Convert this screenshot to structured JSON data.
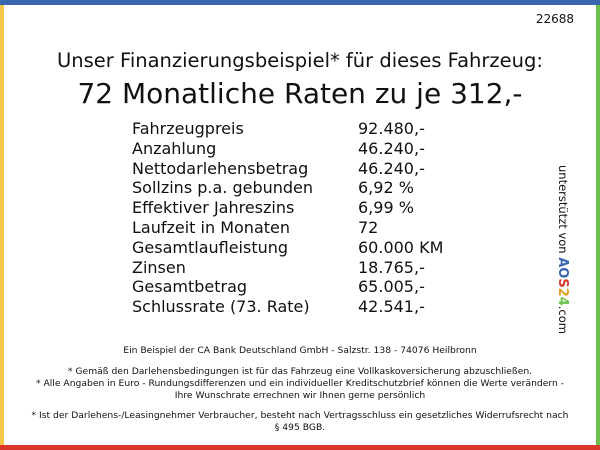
{
  "colors": {
    "top": "#3a66b0",
    "left": "#f7c548",
    "right": "#6cc04a",
    "bottom": "#d8372a"
  },
  "code": "22688",
  "headline": "Unser Finanzierungsbeispiel* für dieses Fahrzeug:",
  "rate_line": "72 Monatliche Raten zu je 312,-",
  "rows": [
    {
      "label": "Fahrzeugpreis",
      "value": "92.480,-"
    },
    {
      "label": "Anzahlung",
      "value": "46.240,-"
    },
    {
      "label": "Nettodarlehensbetrag",
      "value": "46.240,-"
    },
    {
      "label": "Sollzins p.a. gebunden",
      "value": "6,92 %"
    },
    {
      "label": "Effektiver Jahreszins",
      "value": "6,99 %"
    },
    {
      "label": "Laufzeit in Monaten",
      "value": "72"
    },
    {
      "label": "Gesamtlaufleistung",
      "value": "60.000 KM"
    },
    {
      "label": "Zinsen",
      "value": "18.765,-"
    },
    {
      "label": "Gesamtbetrag",
      "value": "65.005,-"
    },
    {
      "label": "Schlussrate (73. Rate)",
      "value": "42.541,-"
    }
  ],
  "side": {
    "text": "unterstützt von",
    "logo": "AOS24",
    "suffix": ".com"
  },
  "bank": "Ein Beispiel der CA Bank Deutschland GmbH - Salzstr. 138 - 74076 Heilbronn",
  "notes": [
    "* Gemäß den Darlehensbedingungen ist für das Fahrzeug eine Vollkaskoversicherung abzuschließen.",
    "* Alle Angaben in Euro - Rundungsdifferenzen und ein individueller Kreditschutzbrief können die Werte verändern - Ihre Wunschrate errechnen wir Ihnen gerne persönlich",
    "* Ist der Darlehens-/Leasingnehmer Verbraucher, besteht nach Vertragsschluss ein gesetzliches Widerrufsrecht nach § 495 BGB."
  ]
}
